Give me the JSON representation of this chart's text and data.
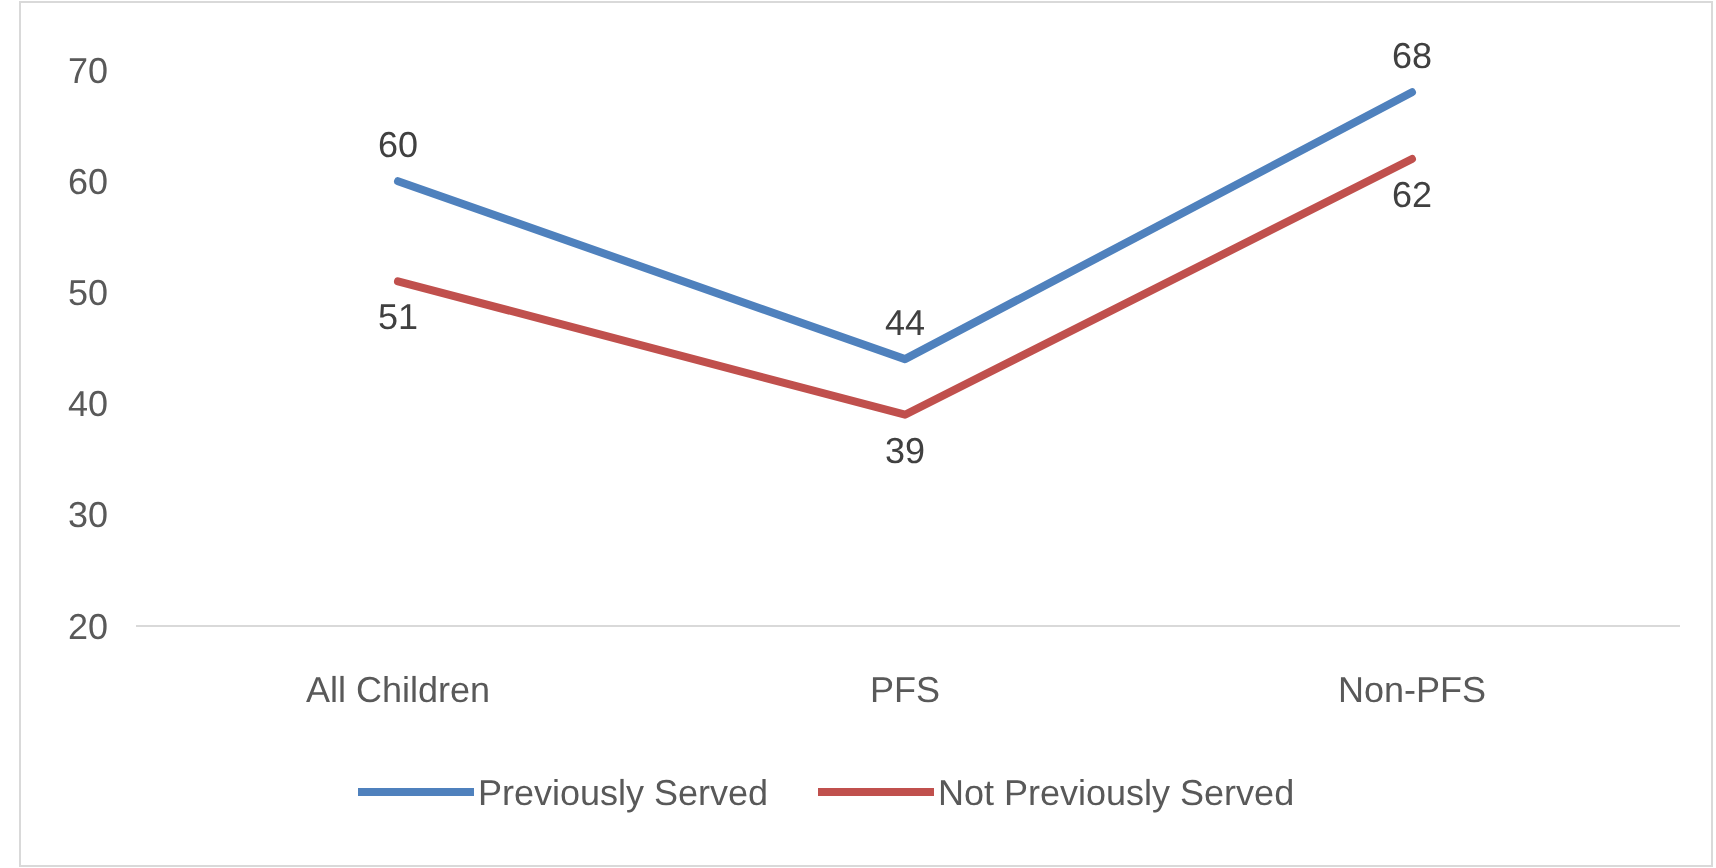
{
  "chart_data": {
    "type": "line",
    "categories": [
      "All Children",
      "PFS",
      "Non-PFS"
    ],
    "series": [
      {
        "name": "Previously Served",
        "color": "#4f81bd",
        "values": [
          60,
          44,
          68
        ]
      },
      {
        "name": "Not Previously Served",
        "color": "#c0504d",
        "values": [
          51,
          39,
          62
        ]
      }
    ],
    "ylim": [
      20,
      70
    ],
    "yticks": [
      20,
      30,
      40,
      50,
      60,
      70
    ],
    "grid": false,
    "legend": "bottom",
    "data_labels": true,
    "marker": "none",
    "line_style": "solid"
  }
}
